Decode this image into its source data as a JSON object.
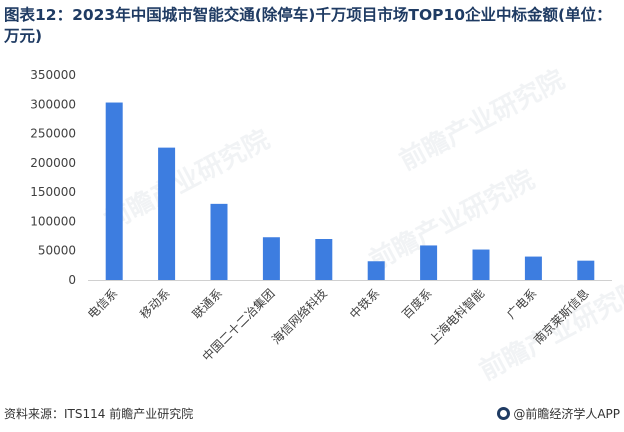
{
  "title": "图表12：2023年中国城市智能交通(除停车)千万项目市场TOP10企业中标金额(单位：万元)",
  "footer": {
    "source": "资料来源：ITS114 前瞻产业研究院",
    "brand": "@前瞻经济学人APP"
  },
  "watermark": "前瞻产业研究院",
  "colors": {
    "bar": "#3d7de0",
    "title": "#1f3b63"
  },
  "chart_data": {
    "type": "bar",
    "title": "图表12：2023年中国城市智能交通(除停车)千万项目市场TOP10企业中标金额(单位：万元)",
    "categories": [
      "电信系",
      "移动系",
      "联通系",
      "中国二十二冶集团",
      "海信网络科技",
      "中铁系",
      "百度系",
      "上海电科智能",
      "广电系",
      "南京莱斯信息"
    ],
    "values": [
      303000,
      226000,
      130000,
      73000,
      70000,
      32000,
      59000,
      52000,
      40000,
      33000
    ],
    "ylim": [
      0,
      350000
    ],
    "yticks": [
      0,
      50000,
      100000,
      150000,
      200000,
      250000,
      300000,
      350000
    ],
    "grid": false,
    "xlabel": "",
    "ylabel": ""
  }
}
